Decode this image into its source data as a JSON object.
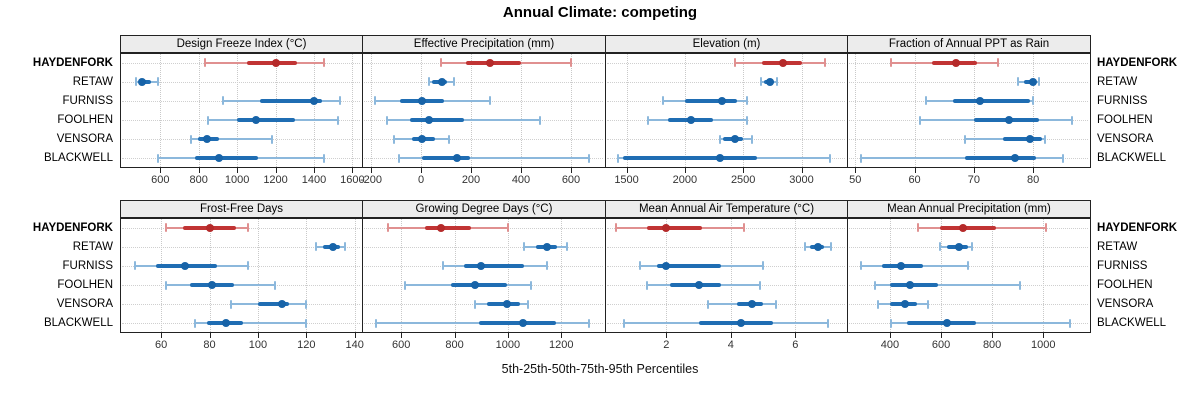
{
  "header": {
    "title": "Annual Climate: competing"
  },
  "footer": {
    "caption": "5th-25th-50th-75th-95th Percentiles"
  },
  "colors": {
    "highlight": "#c13434",
    "highlight_light": "#e09090",
    "highlight_dot": "#b52a2a",
    "normal": "#1f6db3",
    "normal_light": "#8cb8dc",
    "normal_dot": "#1763a8",
    "grid": "#c9c9c9",
    "strip_bg": "#ececec",
    "border": "#222222"
  },
  "chart_data": {
    "type": "dotplot-intervals",
    "title": "Annual Climate: competing",
    "xlabel": "5th-25th-50th-75th-95th Percentiles",
    "percentile_levels": [
      5,
      25,
      50,
      75,
      95
    ],
    "sites": [
      "HAYDENFORK",
      "RETAW",
      "FURNISS",
      "FOOLHEN",
      "VENSORA",
      "BLACKWELL"
    ],
    "highlight_site": "HAYDENFORK",
    "legend_position": "none",
    "grid": "dotted",
    "panels": [
      {
        "row": 0,
        "col": 0,
        "title": "Design Freeze Index (°C)",
        "xlim": [
          390,
          1650
        ],
        "ticks": [
          600,
          800,
          1000,
          1200,
          1400,
          1600
        ],
        "values": {
          "HAYDENFORK": [
            830,
            1050,
            1200,
            1310,
            1450
          ],
          "RETAW": [
            475,
            490,
            505,
            550,
            590
          ],
          "FURNISS": [
            925,
            1120,
            1400,
            1440,
            1535
          ],
          "FOOLHEN": [
            850,
            1000,
            1100,
            1300,
            1525
          ],
          "VENSORA": [
            760,
            795,
            845,
            905,
            1180
          ],
          "BLACKWELL": [
            590,
            780,
            905,
            1110,
            1450
          ]
        }
      },
      {
        "row": 0,
        "col": 1,
        "title": "Effective Precipitation (mm)",
        "xlim": [
          -236,
          736
        ],
        "ticks": [
          -200,
          0,
          200,
          400,
          600
        ],
        "values": {
          "HAYDENFORK": [
            80,
            180,
            275,
            400,
            600
          ],
          "RETAW": [
            30,
            45,
            85,
            105,
            130
          ],
          "FURNISS": [
            -185,
            -85,
            5,
            90,
            275
          ],
          "FOOLHEN": [
            -135,
            -45,
            30,
            170,
            475
          ],
          "VENSORA": [
            -110,
            -35,
            5,
            55,
            110
          ],
          "BLACKWELL": [
            -90,
            5,
            145,
            195,
            670
          ]
        }
      },
      {
        "row": 0,
        "col": 2,
        "title": "Elevation (m)",
        "xlim": [
          1315,
          3390
        ],
        "ticks": [
          1500,
          2000,
          2500,
          3000
        ],
        "values": {
          "HAYDENFORK": [
            2430,
            2660,
            2845,
            3000,
            3200
          ],
          "RETAW": [
            2650,
            2675,
            2730,
            2760,
            2790
          ],
          "FURNISS": [
            1815,
            2000,
            2320,
            2445,
            2530
          ],
          "FOOLHEN": [
            1685,
            1855,
            2050,
            2245,
            2530
          ],
          "VENSORA": [
            2300,
            2330,
            2430,
            2500,
            2575
          ],
          "BLACKWELL": [
            1430,
            1470,
            2300,
            2615,
            3245
          ]
        }
      },
      {
        "row": 0,
        "col": 3,
        "title": "Fraction of Annual PPT as Rain",
        "xlim": [
          48.6,
          89.6
        ],
        "ticks": [
          50,
          60,
          70,
          80
        ],
        "values": {
          "HAYDENFORK": [
            56,
            63,
            67,
            70.5,
            74
          ],
          "RETAW": [
            77.5,
            78.5,
            80,
            80.5,
            81
          ],
          "FURNISS": [
            62,
            66.5,
            71,
            79.5,
            80
          ],
          "FOOLHEN": [
            61,
            70,
            76,
            81,
            86.5
          ],
          "VENSORA": [
            68.5,
            75,
            79.5,
            81.5,
            82
          ],
          "BLACKWELL": [
            51,
            68.5,
            77,
            80.5,
            85
          ]
        }
      },
      {
        "row": 1,
        "col": 0,
        "title": "Frost-Free Days",
        "xlim": [
          43,
          143
        ],
        "ticks": [
          60,
          80,
          100,
          120,
          140
        ],
        "values": {
          "HAYDENFORK": [
            62,
            69,
            80,
            91,
            96
          ],
          "RETAW": [
            124,
            127,
            131,
            134,
            136
          ],
          "FURNISS": [
            49,
            58,
            70,
            83,
            96
          ],
          "FOOLHEN": [
            62,
            72,
            81,
            90,
            107
          ],
          "VENSORA": [
            89,
            100,
            110,
            113,
            120
          ],
          "BLACKWELL": [
            74,
            79,
            87,
            94,
            120
          ]
        }
      },
      {
        "row": 1,
        "col": 1,
        "title": "Growing Degree Days (°C)",
        "xlim": [
          453,
          1364
        ],
        "ticks": [
          600,
          800,
          1000,
          1200
        ],
        "values": {
          "HAYDENFORK": [
            550,
            690,
            750,
            860,
            1000
          ],
          "RETAW": [
            1060,
            1105,
            1145,
            1185,
            1220
          ],
          "FURNISS": [
            755,
            835,
            900,
            1060,
            1145
          ],
          "FOOLHEN": [
            615,
            785,
            875,
            995,
            1085
          ],
          "VENSORA": [
            875,
            920,
            995,
            1045,
            1075
          ],
          "BLACKWELL": [
            505,
            890,
            1055,
            1180,
            1305
          ]
        }
      },
      {
        "row": 1,
        "col": 2,
        "title": "Mean Annual Air Temperature (°C)",
        "xlim": [
          0.1,
          7.6
        ],
        "ticks": [
          2,
          4,
          6
        ],
        "values": {
          "HAYDENFORK": [
            0.45,
            1.4,
            2.0,
            3.1,
            4.4
          ],
          "RETAW": [
            6.3,
            6.45,
            6.7,
            6.9,
            7.1
          ],
          "FURNISS": [
            1.2,
            1.7,
            2.0,
            3.7,
            5.0
          ],
          "FOOLHEN": [
            1.4,
            2.1,
            3.0,
            3.7,
            4.9
          ],
          "VENSORA": [
            3.3,
            4.2,
            4.65,
            5.0,
            5.4
          ],
          "BLACKWELL": [
            0.7,
            3.0,
            4.3,
            5.3,
            7.0
          ]
        }
      },
      {
        "row": 1,
        "col": 3,
        "title": "Mean Annual Precipitation (mm)",
        "xlim": [
          232,
          1183
        ],
        "ticks": [
          400,
          600,
          800,
          1000
        ],
        "values": {
          "HAYDENFORK": [
            510,
            595,
            685,
            815,
            1010
          ],
          "RETAW": [
            595,
            625,
            670,
            705,
            720
          ],
          "FURNISS": [
            285,
            370,
            445,
            530,
            705
          ],
          "FOOLHEN": [
            340,
            400,
            480,
            590,
            910
          ],
          "VENSORA": [
            355,
            400,
            460,
            505,
            550
          ],
          "BLACKWELL": [
            405,
            465,
            625,
            735,
            1105
          ]
        }
      }
    ]
  }
}
